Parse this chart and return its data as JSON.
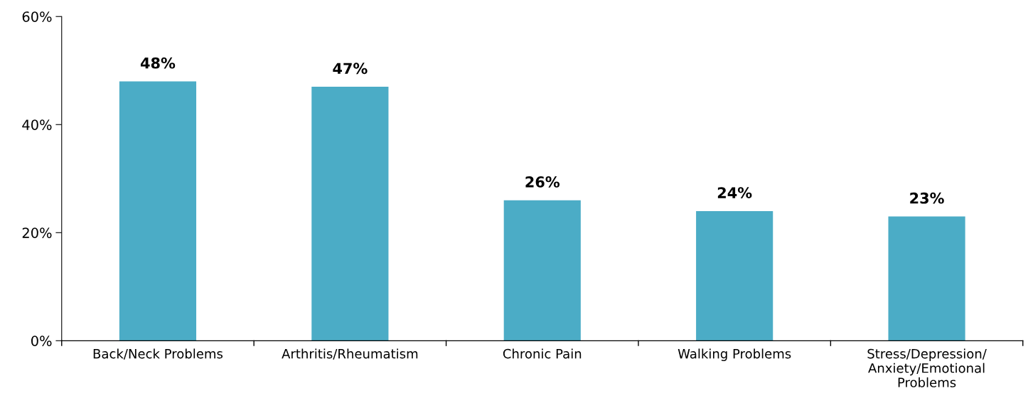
{
  "chart_data": {
    "type": "bar",
    "categories": [
      "Back/Neck Problems",
      "Arthritis/Rheumatism",
      "Chronic Pain",
      "Walking Problems",
      "Stress/Depression/\nAnxiety/Emotional\nProblems"
    ],
    "values": [
      48,
      47,
      26,
      24,
      23
    ],
    "value_labels": [
      "48%",
      "47%",
      "26%",
      "24%",
      "23%"
    ],
    "color": "#4bacc6",
    "ylim": [
      0,
      60
    ],
    "yticks": [
      {
        "value": 0,
        "label": "0%"
      },
      {
        "value": 20,
        "label": "20%"
      },
      {
        "value": 40,
        "label": "40%"
      },
      {
        "value": 60,
        "label": "60%"
      }
    ],
    "grid": false
  }
}
